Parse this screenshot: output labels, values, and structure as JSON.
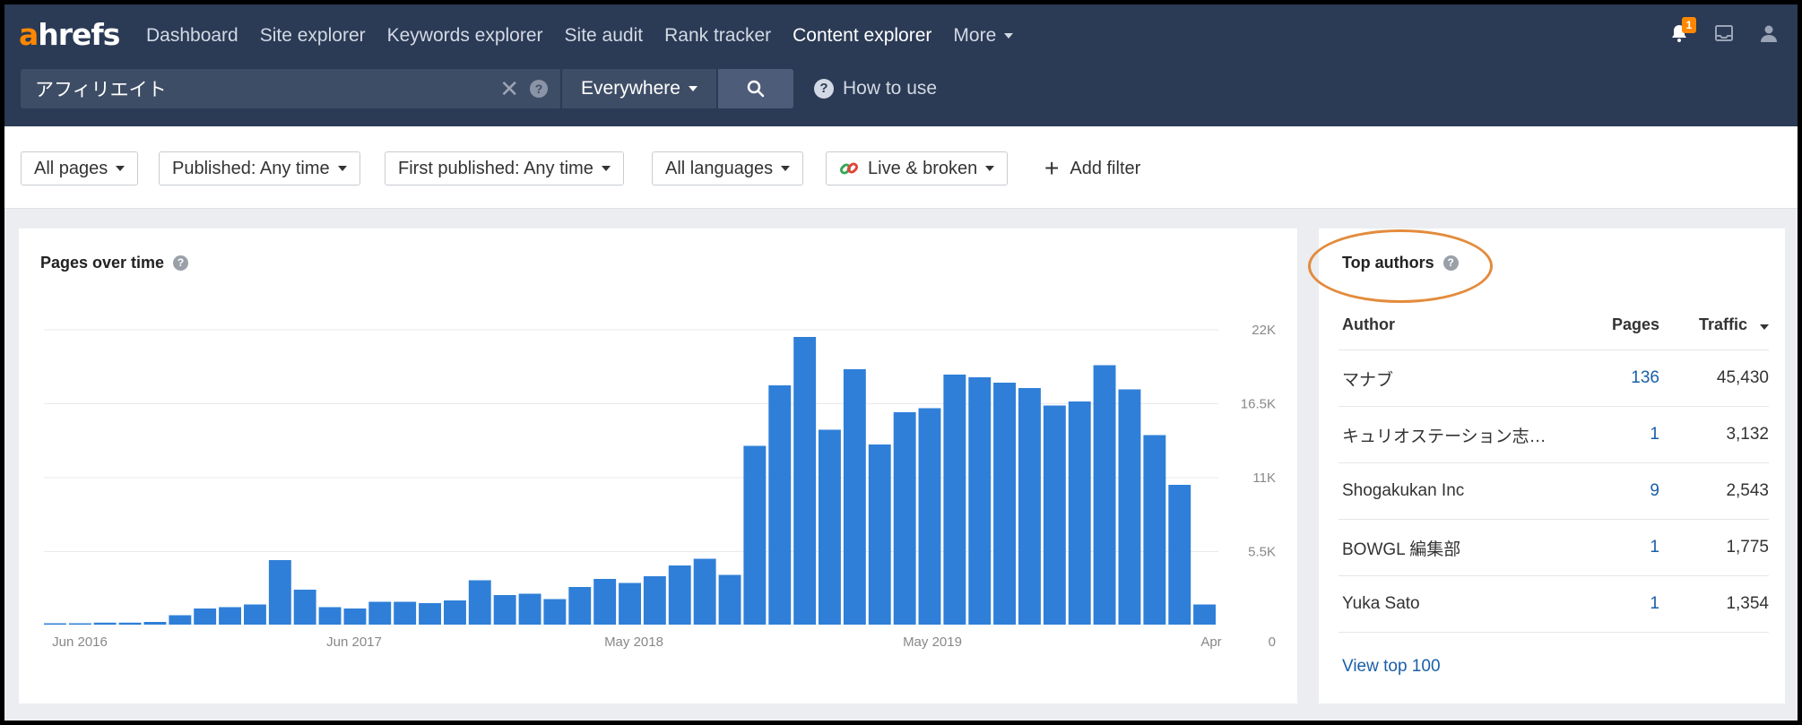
{
  "app": {
    "logo": "ahrefs",
    "nav": [
      "Dashboard",
      "Site explorer",
      "Keywords explorer",
      "Site audit",
      "Rank tracker",
      "Content explorer",
      "More"
    ],
    "nav_active": "Content explorer",
    "notification_count": "1"
  },
  "search": {
    "query": "アフィリエイト",
    "scope": "Everywhere",
    "how_to_use": "How to use"
  },
  "filters": {
    "items": [
      "All pages",
      "Published: Any time",
      "First published: Any time",
      "All languages",
      "Live & broken"
    ],
    "add_filter": "Add filter"
  },
  "chart_panel": {
    "title": "Pages over time"
  },
  "chart_data": {
    "type": "bar",
    "title": "Pages over time",
    "x_tick_labels": [
      "Jun 2016",
      "Jun 2017",
      "May 2018",
      "May 2019",
      "Apr"
    ],
    "y_tick_labels": [
      "22K",
      "16.5K",
      "11K",
      "5.5K",
      "0"
    ],
    "ylim": [
      0,
      22000
    ],
    "series": [
      {
        "values": [
          100,
          100,
          150,
          150,
          200,
          700,
          1200,
          1300,
          1500,
          4800,
          2600,
          1300,
          1200,
          1700,
          1700,
          1600,
          1800,
          3300,
          2200,
          2300,
          1900,
          2800,
          3400,
          3100,
          3600,
          4400,
          4900,
          3700,
          13300,
          17800,
          21400,
          14500,
          19000,
          13400,
          15800,
          16100,
          18600,
          18400,
          18000,
          17600,
          16300,
          16600,
          19300,
          17500,
          14100,
          10400,
          1500
        ]
      }
    ],
    "gridlines": true,
    "accent_color": "#2f7fd8"
  },
  "authors_panel": {
    "title": "Top authors",
    "columns": [
      "Author",
      "Pages",
      "Traffic"
    ],
    "rows": [
      {
        "author": "マナブ",
        "pages": "136",
        "traffic": "45,430"
      },
      {
        "author": "キュリオステーション志…",
        "pages": "1",
        "traffic": "3,132"
      },
      {
        "author": "Shogakukan Inc",
        "pages": "9",
        "traffic": "2,543"
      },
      {
        "author": "BOWGL 編集部",
        "pages": "1",
        "traffic": "1,775"
      },
      {
        "author": "Yuka Sato",
        "pages": "1",
        "traffic": "1,354"
      }
    ],
    "view_top": "View top 100"
  },
  "colors": {
    "topbar": "#2b3a55",
    "brand_orange": "#ff8800",
    "bar_blue": "#2f7fd8",
    "link_blue": "#1a5fa8",
    "highlight": "#e38b3c"
  }
}
